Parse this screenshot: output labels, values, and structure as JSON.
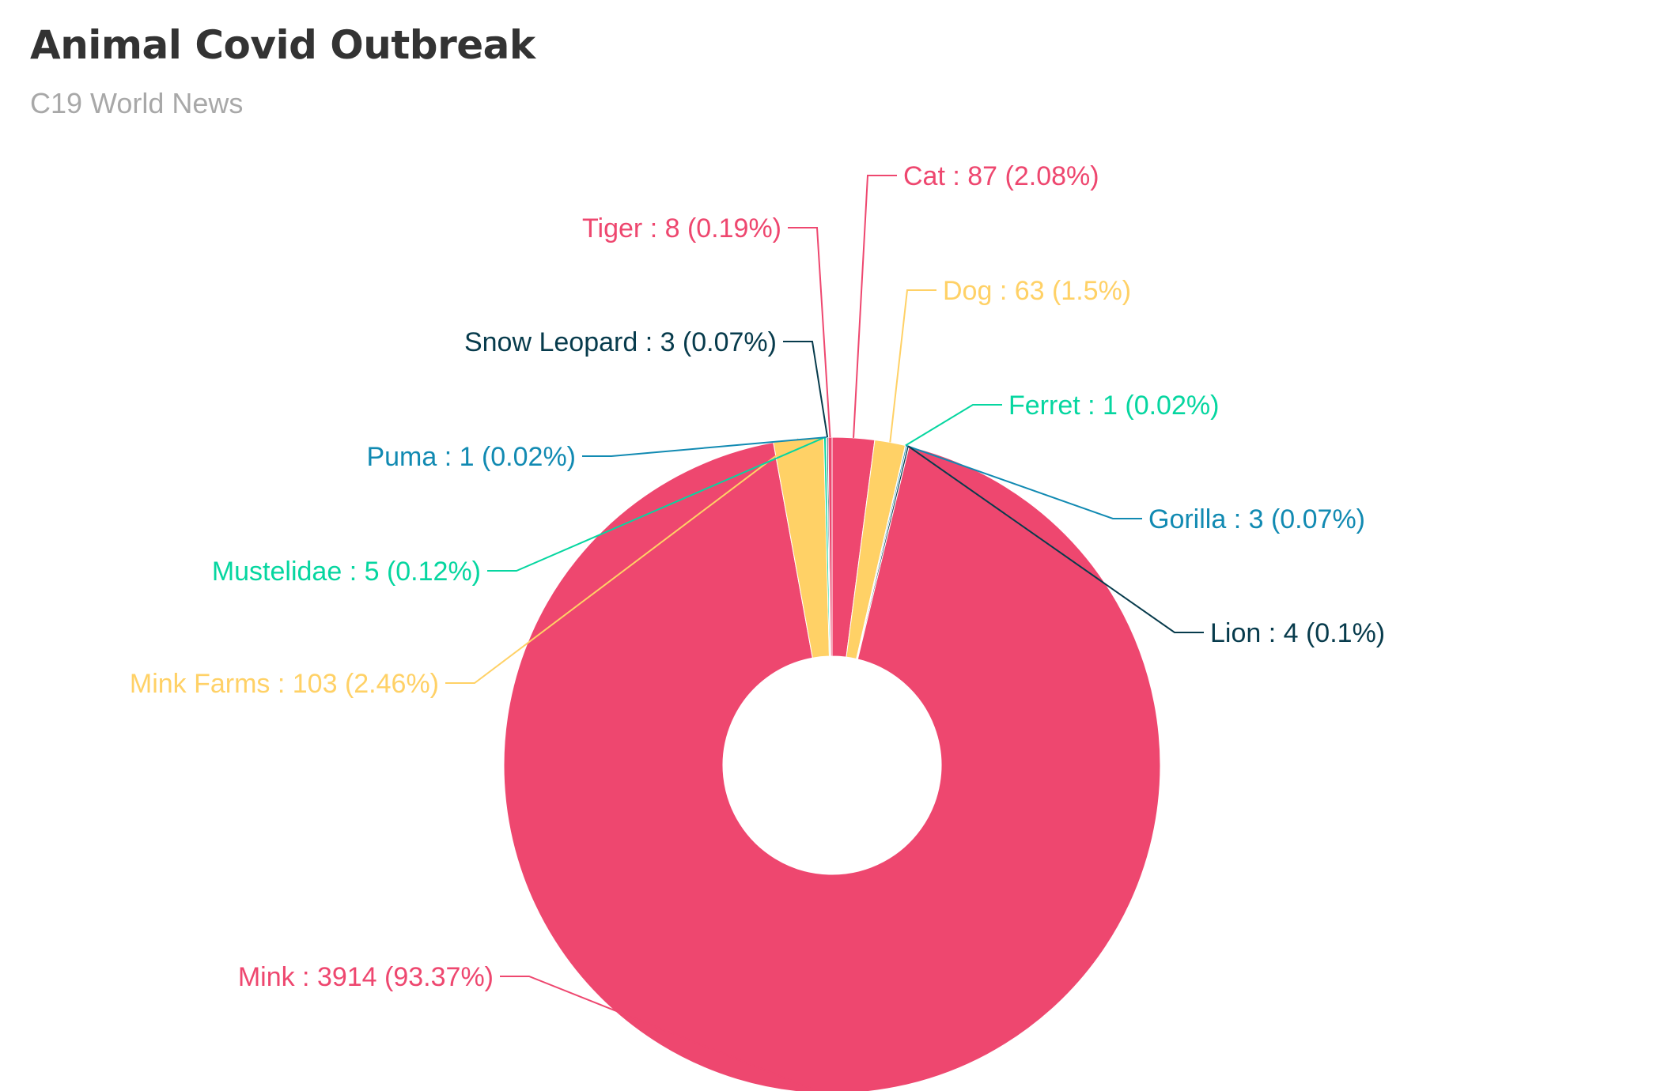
{
  "header": {
    "title": "Animal Covid Outbreak",
    "subtitle": "C19 World News"
  },
  "chart_data": {
    "type": "pie",
    "donut": true,
    "title": "Animal Covid Outbreak",
    "subtitle": "C19 World News",
    "slices": [
      {
        "name": "Cat",
        "value": 87,
        "percent": 2.08,
        "color": "#ee476f",
        "label": "Cat : 87 (2.08%)"
      },
      {
        "name": "Dog",
        "value": 63,
        "percent": 1.5,
        "color": "#ffd166",
        "label": "Dog : 63 (1.5%)"
      },
      {
        "name": "Ferret",
        "value": 1,
        "percent": 0.02,
        "color": "#06d6a0",
        "label": "Ferret : 1 (0.02%)"
      },
      {
        "name": "Gorilla",
        "value": 3,
        "percent": 0.07,
        "color": "#118ab2",
        "label": "Gorilla : 3 (0.07%)"
      },
      {
        "name": "Lion",
        "value": 4,
        "percent": 0.1,
        "color": "#073b4c",
        "label": "Lion : 4 (0.1%)"
      },
      {
        "name": "Mink",
        "value": 3914,
        "percent": 93.37,
        "color": "#ee476f",
        "label": "Mink : 3914 (93.37%)"
      },
      {
        "name": "Mink Farms",
        "value": 103,
        "percent": 2.46,
        "color": "#ffd166",
        "label": "Mink Farms : 103 (2.46%)"
      },
      {
        "name": "Mustelidae",
        "value": 5,
        "percent": 0.12,
        "color": "#06d6a0",
        "label": "Mustelidae : 5 (0.12%)"
      },
      {
        "name": "Puma",
        "value": 1,
        "percent": 0.02,
        "color": "#118ab2",
        "label": "Puma : 1 (0.02%)"
      },
      {
        "name": "Snow Leopard",
        "value": 3,
        "percent": 0.07,
        "color": "#073b4c",
        "label": "Snow Leopard : 3 (0.07%)"
      },
      {
        "name": "Tiger",
        "value": 8,
        "percent": 0.19,
        "color": "#ee476f",
        "label": "Tiger : 8 (0.19%)"
      }
    ]
  }
}
